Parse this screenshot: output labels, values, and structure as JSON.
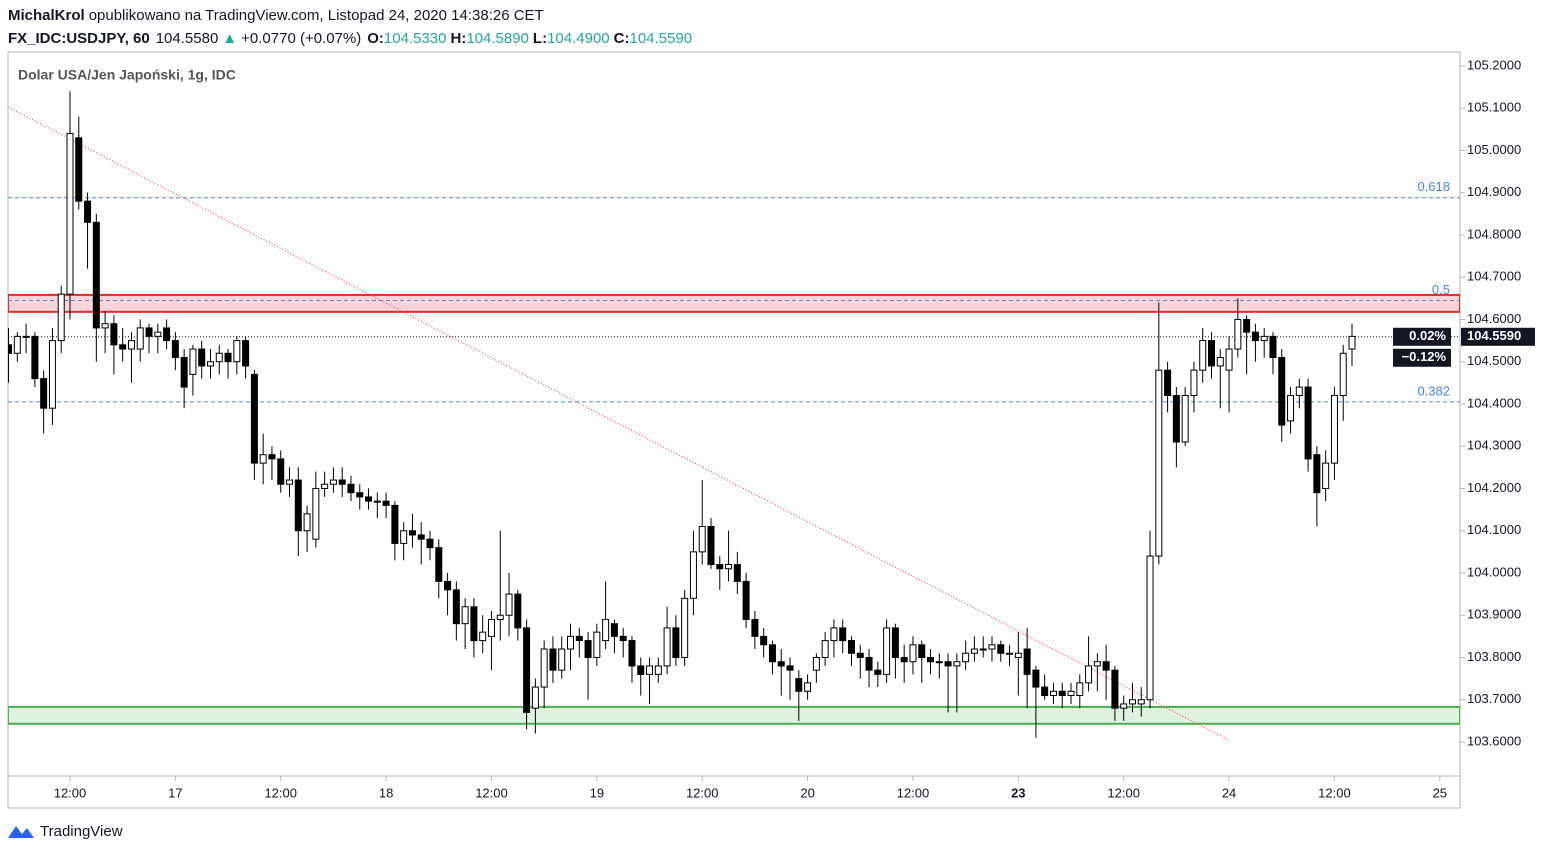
{
  "header": {
    "author": "MichalKrol",
    "published": "opublikowano na TradingView.com, Listopad 24, 2020 14:38:26 CET",
    "symbol": "FX_IDC:USDJPY, 60",
    "price": "104.5580",
    "arrow": "▲",
    "change": "+0.0770 (+0.07%)",
    "o_label": "O:",
    "open": "104.5330",
    "h_label": "H:",
    "high": "104.5890",
    "l_label": "L:",
    "low": "104.4900",
    "c_label": "C:",
    "close": "104.5590"
  },
  "footer": {
    "brand": "TradingView"
  },
  "chart_data": {
    "type": "candlestick",
    "title": "Dolar USA/Jen Japoński, 1g, IDC",
    "up_color": "#ffffff",
    "down_color": "#000000",
    "border_color": "#000000",
    "xlim": [
      4.94,
      170.3
    ],
    "ylim": [
      103.5195,
      105.233
    ],
    "xticks": [
      {
        "value": 12,
        "label": "12:00"
      },
      {
        "value": 24,
        "label": "17"
      },
      {
        "value": 36,
        "label": "12:00"
      },
      {
        "value": 48,
        "label": "18"
      },
      {
        "value": 60,
        "label": "12:00"
      },
      {
        "value": 72,
        "label": "19"
      },
      {
        "value": 84,
        "label": "12:00"
      },
      {
        "value": 96,
        "label": "20"
      },
      {
        "value": 108,
        "label": "12:00"
      },
      {
        "value": 120,
        "label": "23",
        "bold": true
      },
      {
        "value": 132,
        "label": "12:00"
      },
      {
        "value": 144,
        "label": "24"
      },
      {
        "value": 156,
        "label": "12:00"
      },
      {
        "value": 168,
        "label": "25"
      }
    ],
    "yticks": [
      {
        "value": 103.6,
        "label": "103.6000"
      },
      {
        "value": 103.7,
        "label": "103.7000"
      },
      {
        "value": 103.8,
        "label": "103.8000"
      },
      {
        "value": 103.9,
        "label": "103.9000"
      },
      {
        "value": 104.0,
        "label": "104.0000"
      },
      {
        "value": 104.1,
        "label": "104.1000"
      },
      {
        "value": 104.2,
        "label": "104.2000"
      },
      {
        "value": 104.3,
        "label": "104.3000"
      },
      {
        "value": 104.4,
        "label": "104.4000"
      },
      {
        "value": 104.5,
        "label": "104.5000"
      },
      {
        "value": 104.6,
        "label": "104.6000"
      },
      {
        "value": 104.7,
        "label": "104.7000"
      },
      {
        "value": 104.8,
        "label": "104.8000"
      },
      {
        "value": 104.9,
        "label": "104.9000"
      },
      {
        "value": 105.0,
        "label": "105.0000"
      },
      {
        "value": 105.1,
        "label": "105.1000"
      },
      {
        "value": 105.2,
        "label": "105.2000"
      }
    ],
    "levels": [
      {
        "label": "0.618",
        "value": 104.888,
        "color": "#4a86d8"
      },
      {
        "label": "0.5",
        "value": 104.645,
        "color": "#4a86d8"
      },
      {
        "label": "0.382",
        "value": 104.405,
        "color": "#4a86d8"
      }
    ],
    "zones": [
      {
        "from": 104.618,
        "to": 104.658,
        "color": "#e52b2b",
        "fill": "rgba(242,54,69,0.22)"
      },
      {
        "from": 103.643,
        "to": 103.683,
        "color": "#4caf50",
        "fill": "rgba(76,175,80,0.18)"
      }
    ],
    "trendline": {
      "x": [
        4.94,
        143.9
      ],
      "y": [
        105.103,
        103.605
      ],
      "color": "#e53935"
    },
    "last_price": 104.559,
    "last_price_label": "104.5590",
    "badges": [
      "0.02%",
      "−0.12%"
    ],
    "x": [
      5,
      6,
      7,
      8,
      9,
      10,
      11,
      12,
      13,
      14,
      15,
      16,
      17,
      18,
      19,
      20,
      21,
      22,
      23,
      24,
      25,
      26,
      27,
      28,
      29,
      30,
      31,
      32,
      33,
      34,
      35,
      36,
      37,
      38,
      39,
      40,
      41,
      42,
      43,
      44,
      45,
      46,
      47,
      48,
      49,
      50,
      51,
      52,
      53,
      54,
      55,
      56,
      57,
      58,
      59,
      60,
      61,
      62,
      63,
      64,
      65,
      66,
      67,
      68,
      69,
      70,
      71,
      72,
      73,
      74,
      75,
      76,
      77,
      78,
      79,
      80,
      81,
      82,
      83,
      84,
      85,
      86,
      87,
      88,
      89,
      90,
      91,
      92,
      93,
      94,
      95,
      96,
      97,
      98,
      99,
      100,
      101,
      102,
      103,
      104,
      105,
      106,
      107,
      108,
      109,
      110,
      111,
      112,
      113,
      114,
      115,
      116,
      117,
      118,
      119,
      120,
      121,
      122,
      123,
      124,
      125,
      126,
      127,
      128,
      129,
      130,
      131,
      132,
      133,
      134,
      135,
      136,
      137,
      138,
      139,
      140,
      141,
      142,
      143,
      144,
      145,
      146,
      147,
      148,
      149,
      150,
      151,
      152,
      153,
      154,
      155,
      156,
      157,
      158
    ],
    "candles": [
      [
        104.54,
        104.58,
        104.45,
        104.52
      ],
      [
        104.52,
        104.57,
        104.5,
        104.56
      ],
      [
        104.56,
        104.59,
        104.52,
        104.56
      ],
      [
        104.56,
        104.57,
        104.44,
        104.46
      ],
      [
        104.46,
        104.48,
        104.33,
        104.39
      ],
      [
        104.39,
        104.58,
        104.35,
        104.55
      ],
      [
        104.55,
        104.68,
        104.52,
        104.66
      ],
      [
        104.66,
        105.14,
        104.6,
        105.04
      ],
      [
        105.03,
        105.08,
        104.86,
        104.88
      ],
      [
        104.88,
        104.9,
        104.72,
        104.83
      ],
      [
        104.83,
        104.85,
        104.5,
        104.58
      ],
      [
        104.58,
        104.62,
        104.52,
        104.59
      ],
      [
        104.59,
        104.61,
        104.47,
        104.54
      ],
      [
        104.54,
        104.58,
        104.5,
        104.53
      ],
      [
        104.53,
        104.57,
        104.45,
        104.55
      ],
      [
        104.53,
        104.6,
        104.5,
        104.58
      ],
      [
        104.58,
        104.59,
        104.52,
        104.56
      ],
      [
        104.56,
        104.59,
        104.52,
        104.57
      ],
      [
        104.58,
        104.6,
        104.53,
        104.55
      ],
      [
        104.55,
        104.57,
        104.48,
        104.51
      ],
      [
        104.51,
        104.53,
        104.39,
        104.44
      ],
      [
        104.47,
        104.54,
        104.42,
        104.53
      ],
      [
        104.53,
        104.55,
        104.46,
        104.49
      ],
      [
        104.49,
        104.53,
        104.46,
        104.5
      ],
      [
        104.5,
        104.54,
        104.47,
        104.52
      ],
      [
        104.52,
        104.53,
        104.46,
        104.5
      ],
      [
        104.5,
        104.56,
        104.47,
        104.55
      ],
      [
        104.55,
        104.56,
        104.46,
        104.49
      ],
      [
        104.47,
        104.48,
        104.22,
        104.26
      ],
      [
        104.26,
        104.33,
        104.21,
        104.28
      ],
      [
        104.28,
        104.3,
        104.22,
        104.27
      ],
      [
        104.27,
        104.29,
        104.19,
        104.21
      ],
      [
        104.21,
        104.25,
        104.18,
        104.22
      ],
      [
        104.22,
        104.25,
        104.04,
        104.1
      ],
      [
        104.1,
        104.16,
        104.05,
        104.14
      ],
      [
        104.08,
        104.24,
        104.06,
        104.2
      ],
      [
        104.2,
        104.24,
        104.18,
        104.21
      ],
      [
        104.21,
        104.25,
        104.19,
        104.22
      ],
      [
        104.22,
        104.25,
        104.18,
        104.21
      ],
      [
        104.21,
        104.23,
        104.17,
        104.19
      ],
      [
        104.19,
        104.21,
        104.15,
        104.18
      ],
      [
        104.18,
        104.2,
        104.15,
        104.17
      ],
      [
        104.17,
        104.19,
        104.13,
        104.17
      ],
      [
        104.17,
        104.19,
        104.13,
        104.16
      ],
      [
        104.16,
        104.17,
        104.03,
        104.07
      ],
      [
        104.07,
        104.12,
        104.03,
        104.1
      ],
      [
        104.1,
        104.14,
        104.06,
        104.09
      ],
      [
        104.09,
        104.12,
        104.02,
        104.08
      ],
      [
        104.08,
        104.1,
        104.03,
        104.06
      ],
      [
        104.06,
        104.08,
        103.94,
        103.98
      ],
      [
        103.98,
        104.0,
        103.9,
        103.96
      ],
      [
        103.96,
        103.98,
        103.84,
        103.88
      ],
      [
        103.88,
        103.94,
        103.82,
        103.92
      ],
      [
        103.92,
        103.94,
        103.8,
        103.84
      ],
      [
        103.84,
        103.9,
        103.81,
        103.86
      ],
      [
        103.85,
        103.91,
        103.77,
        103.89
      ],
      [
        103.89,
        104.1,
        103.84,
        103.9
      ],
      [
        103.9,
        104.0,
        103.85,
        103.95
      ],
      [
        103.95,
        103.96,
        103.84,
        103.87
      ],
      [
        103.87,
        103.89,
        103.63,
        103.67
      ],
      [
        103.68,
        103.75,
        103.62,
        103.73
      ],
      [
        103.73,
        103.84,
        103.68,
        103.82
      ],
      [
        103.82,
        103.85,
        103.74,
        103.77
      ],
      [
        103.77,
        103.85,
        103.75,
        103.82
      ],
      [
        103.82,
        103.88,
        103.77,
        103.85
      ],
      [
        103.85,
        103.87,
        103.8,
        103.84
      ],
      [
        103.84,
        103.86,
        103.7,
        103.8
      ],
      [
        103.8,
        103.88,
        103.78,
        103.86
      ],
      [
        103.84,
        103.98,
        103.82,
        103.89
      ],
      [
        103.88,
        103.89,
        103.81,
        103.85
      ],
      [
        103.85,
        103.87,
        103.8,
        103.84
      ],
      [
        103.84,
        103.85,
        103.74,
        103.78
      ],
      [
        103.78,
        103.8,
        103.71,
        103.76
      ],
      [
        103.76,
        103.8,
        103.69,
        103.78
      ],
      [
        103.76,
        103.8,
        103.74,
        103.78
      ],
      [
        103.78,
        103.92,
        103.76,
        103.87
      ],
      [
        103.87,
        103.9,
        103.78,
        103.8
      ],
      [
        103.8,
        103.96,
        103.78,
        103.94
      ],
      [
        103.94,
        104.1,
        103.9,
        104.05
      ],
      [
        104.05,
        104.22,
        104.02,
        104.11
      ],
      [
        104.11,
        104.13,
        104.01,
        104.02
      ],
      [
        104.02,
        104.04,
        103.96,
        104.01
      ],
      [
        104.01,
        104.1,
        103.98,
        104.02
      ],
      [
        104.02,
        104.05,
        103.95,
        103.98
      ],
      [
        103.98,
        104.0,
        103.87,
        103.89
      ],
      [
        103.89,
        103.91,
        103.82,
        103.85
      ],
      [
        103.85,
        103.87,
        103.8,
        103.83
      ],
      [
        103.83,
        103.84,
        103.76,
        103.79
      ],
      [
        103.79,
        103.82,
        103.71,
        103.78
      ],
      [
        103.78,
        103.8,
        103.7,
        103.77
      ],
      [
        103.75,
        103.77,
        103.65,
        103.72
      ],
      [
        103.72,
        103.76,
        103.7,
        103.74
      ],
      [
        103.77,
        103.81,
        103.74,
        103.8
      ],
      [
        103.8,
        103.86,
        103.78,
        103.84
      ],
      [
        103.84,
        103.89,
        103.8,
        103.87
      ],
      [
        103.87,
        103.89,
        103.81,
        103.84
      ],
      [
        103.84,
        103.85,
        103.78,
        103.81
      ],
      [
        103.81,
        103.83,
        103.75,
        103.8
      ],
      [
        103.8,
        103.82,
        103.73,
        103.77
      ],
      [
        103.77,
        103.79,
        103.73,
        103.76
      ],
      [
        103.76,
        103.89,
        103.74,
        103.87
      ],
      [
        103.87,
        103.88,
        103.75,
        103.8
      ],
      [
        103.8,
        103.83,
        103.74,
        103.79
      ],
      [
        103.79,
        103.85,
        103.76,
        103.83
      ],
      [
        103.83,
        103.84,
        103.74,
        103.8
      ],
      [
        103.8,
        103.82,
        103.76,
        103.79
      ],
      [
        103.79,
        103.81,
        103.75,
        103.79
      ],
      [
        103.79,
        103.81,
        103.67,
        103.78
      ],
      [
        103.78,
        103.81,
        103.67,
        103.79
      ],
      [
        103.79,
        103.84,
        103.77,
        103.81
      ],
      [
        103.81,
        103.85,
        103.79,
        103.82
      ],
      [
        103.82,
        103.85,
        103.8,
        103.82
      ],
      [
        103.82,
        103.85,
        103.79,
        103.83
      ],
      [
        103.83,
        103.84,
        103.79,
        103.81
      ],
      [
        103.81,
        103.83,
        103.78,
        103.81
      ],
      [
        103.8,
        103.86,
        103.71,
        103.81
      ],
      [
        103.82,
        103.87,
        103.68,
        103.76
      ],
      [
        103.77,
        103.78,
        103.61,
        103.73
      ],
      [
        103.73,
        103.76,
        103.7,
        103.71
      ],
      [
        103.71,
        103.74,
        103.69,
        103.72
      ],
      [
        103.72,
        103.74,
        103.68,
        103.71
      ],
      [
        103.71,
        103.74,
        103.69,
        103.72
      ],
      [
        103.71,
        103.76,
        103.68,
        103.74
      ],
      [
        103.74,
        103.85,
        103.72,
        103.78
      ],
      [
        103.78,
        103.81,
        103.72,
        103.79
      ],
      [
        103.79,
        103.83,
        103.7,
        103.77
      ],
      [
        103.77,
        103.78,
        103.65,
        103.68
      ],
      [
        103.68,
        103.71,
        103.65,
        103.69
      ],
      [
        103.69,
        103.74,
        103.67,
        103.7
      ],
      [
        103.69,
        103.73,
        103.66,
        103.7
      ],
      [
        103.7,
        104.1,
        103.68,
        104.04
      ],
      [
        104.04,
        104.64,
        104.02,
        104.48
      ],
      [
        104.48,
        104.5,
        104.38,
        104.42
      ],
      [
        104.42,
        104.44,
        104.25,
        104.31
      ],
      [
        104.31,
        104.44,
        104.3,
        104.42
      ],
      [
        104.42,
        104.5,
        104.38,
        104.48
      ],
      [
        104.48,
        104.58,
        104.45,
        104.55
      ],
      [
        104.55,
        104.57,
        104.46,
        104.49
      ],
      [
        104.49,
        104.53,
        104.39,
        104.51
      ],
      [
        104.48,
        104.56,
        104.38,
        104.53
      ],
      [
        104.53,
        104.65,
        104.51,
        104.6
      ],
      [
        104.6,
        104.61,
        104.47,
        104.57
      ],
      [
        104.57,
        104.59,
        104.5,
        104.55
      ],
      [
        104.55,
        104.58,
        104.51,
        104.56
      ],
      [
        104.56,
        104.57,
        104.47,
        104.51
      ],
      [
        104.51,
        104.53,
        104.31,
        104.35
      ],
      [
        104.36,
        104.44,
        104.33,
        104.42
      ],
      [
        104.42,
        104.46,
        104.39,
        104.44
      ],
      [
        104.44,
        104.46,
        104.24,
        104.27
      ],
      [
        104.28,
        104.3,
        104.11,
        104.19
      ],
      [
        104.2,
        104.29,
        104.17,
        104.26
      ],
      [
        104.26,
        104.44,
        104.22,
        104.42
      ],
      [
        104.42,
        104.54,
        104.36,
        104.52
      ],
      [
        104.53,
        104.59,
        104.49,
        104.56
      ]
    ]
  }
}
